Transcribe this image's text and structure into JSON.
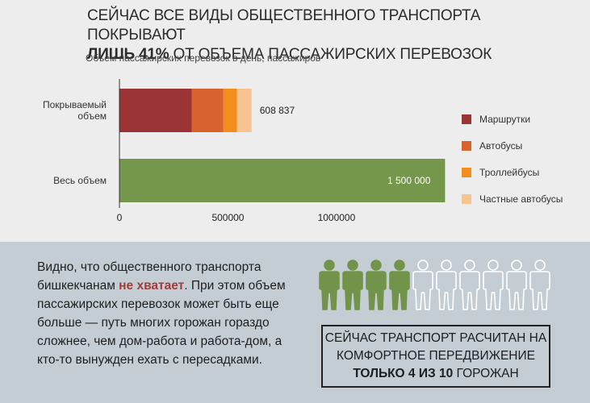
{
  "header": {
    "title_line1": "СЕЙЧАС ВСЕ ВИДЫ ОБЩЕСТВЕННОГО ТРАНСПОРТА ПОКРЫВАЮТ",
    "title_line2_bold": "ЛИШЬ 41%",
    "title_line2_rest": " ОТ ОБЪЕМА ПАССАЖИРСКИХ ПЕРЕВОЗОК",
    "subtitle": "Объем пассажирских перевозок в день, пассажиров"
  },
  "chart_data": {
    "type": "bar",
    "orientation": "horizontal",
    "stacked": true,
    "categories": [
      "Покрываемый\nобъем",
      "Весь объем"
    ],
    "series": [
      {
        "name": "Маршрутки",
        "color": "#9b3535",
        "values": [
          333000,
          0
        ]
      },
      {
        "name": "Автобусы",
        "color": "#d9632e",
        "values": [
          146000,
          0
        ]
      },
      {
        "name": "Троллейбусы",
        "color": "#f28d1e",
        "values": [
          62000,
          0
        ]
      },
      {
        "name": "Частные автобусы",
        "color": "#f7c390",
        "values": [
          67837,
          0
        ]
      },
      {
        "name": "",
        "color": "#74974b",
        "values": [
          0,
          1500000
        ]
      }
    ],
    "totals": [
      "608 837",
      "1 500 000"
    ],
    "x_ticks": [
      {
        "value": 0,
        "label": "0"
      },
      {
        "value": 500000,
        "label": "500000"
      },
      {
        "value": 1000000,
        "label": "1000000"
      }
    ],
    "xlim": [
      0,
      1500000
    ],
    "grid": false,
    "legend_position": "right"
  },
  "legend": [
    {
      "label": "Маршрутки",
      "color": "#9b3535"
    },
    {
      "label": "Автобусы",
      "color": "#d9632e"
    },
    {
      "label": "Троллейбусы",
      "color": "#f28d1e"
    },
    {
      "label": "Частные автобусы",
      "color": "#f7c390"
    }
  ],
  "text_block": {
    "part1": "Видно, что общественного транспорта бишкекчанам ",
    "accent": "не хватает",
    "part2": ". При этом объем пассажирских перевозок может быть еще больше — путь многих горожан гораздо сложнее, чем дом-работа и работа-дом, а кто-то вынужден ехать с пересадками."
  },
  "people": {
    "total": 10,
    "highlighted": 4,
    "highlight_color": "#72944a",
    "outline_color": "#ffffff"
  },
  "callout": {
    "line1": "СЕЙЧАС ТРАНСПОРТ РАСЧИТАН НА",
    "line2": "КОМФОРТНОЕ ПЕРЕДВИЖЕНИЕ",
    "line3_bold": "ТОЛЬКО 4 ИЗ 10",
    "line3_rest": " ГОРОЖАН"
  }
}
